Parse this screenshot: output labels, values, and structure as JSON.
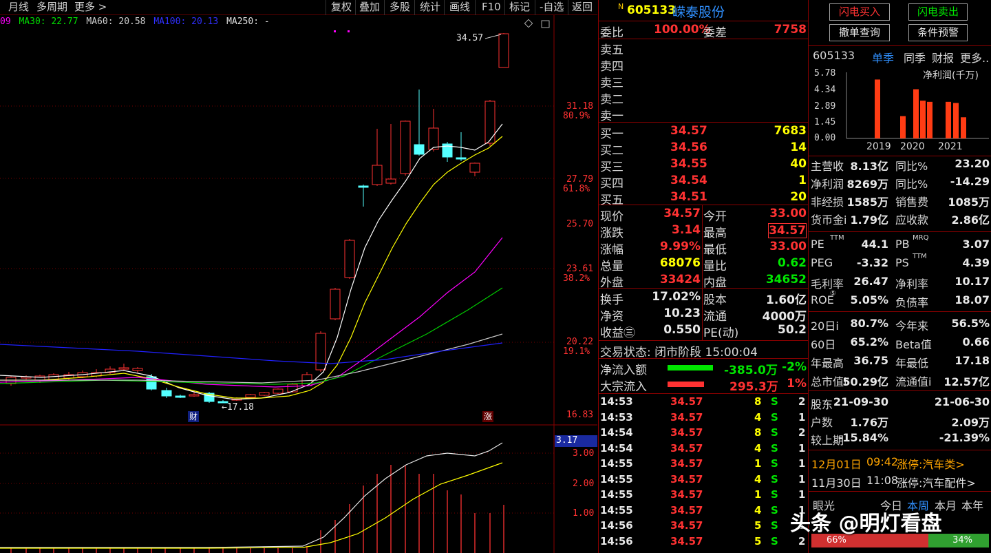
{
  "toolbar": {
    "left": [
      "月线",
      "多周期",
      "更多 >"
    ],
    "right": [
      "复权",
      "叠加",
      "多股",
      "统计",
      "画线",
      "F10",
      "标记",
      "-自选",
      "返回"
    ]
  },
  "ma_legend": {
    "ma20_partial": "09",
    "ma30": "MA30: 22.77",
    "ma60": "MA60: 20.58",
    "ma100": "MA100: 20.13",
    "ma250": "MA250: -"
  },
  "kchart": {
    "high_marker": "34.57",
    "low_marker": "←17.18",
    "price_ticks": [
      "31.18",
      "27.79",
      "25.70",
      "23.61",
      "20.22",
      "16.83"
    ],
    "pct_ticks": [
      "80.9%",
      "61.8%",
      "38.2%",
      "19.1%"
    ],
    "event_cai": "财",
    "event_zhang": "涨",
    "indicator_current": "3.17",
    "indicator_ticks": [
      "3.00",
      "2.00",
      "1.00"
    ],
    "colors": {
      "up": "#ff3232",
      "down": "#54ffff",
      "ma5": "#ffffff",
      "ma10": "#ffff00",
      "ma20": "#ff00ff",
      "ma30": "#00cc00",
      "ma60": "#c8c8c8",
      "ma100": "#2020ff"
    }
  },
  "stock": {
    "badge": "N",
    "code": "605133",
    "name": "嵘泰股份"
  },
  "quote": {
    "weibi_label": "委比",
    "weibi_value": "100.00%",
    "weicha_label": "委差",
    "weicha_value": "7758",
    "sell": [
      {
        "label": "卖五"
      },
      {
        "label": "卖四"
      },
      {
        "label": "卖三"
      },
      {
        "label": "卖二"
      },
      {
        "label": "卖一"
      }
    ],
    "buy": [
      {
        "label": "买一",
        "price": "34.57",
        "vol": "7683"
      },
      {
        "label": "买二",
        "price": "34.56",
        "vol": "14"
      },
      {
        "label": "买三",
        "price": "34.55",
        "vol": "40"
      },
      {
        "label": "买四",
        "price": "34.54",
        "vol": "1"
      },
      {
        "label": "买五",
        "price": "34.51",
        "vol": "20"
      }
    ],
    "stats": [
      {
        "l1": "现价",
        "v1": "34.57",
        "c1": "red",
        "l2": "今开",
        "v2": "33.00",
        "c2": "red"
      },
      {
        "l1": "涨跌",
        "v1": "3.14",
        "c1": "red",
        "l2": "最高",
        "v2": "34.57",
        "c2": "red"
      },
      {
        "l1": "涨幅",
        "v1": "9.99%",
        "c1": "red",
        "l2": "最低",
        "v2": "33.00",
        "c2": "red"
      },
      {
        "l1": "总量",
        "v1": "68076",
        "c1": "yellow",
        "l2": "量比",
        "v2": "0.62",
        "c2": "green"
      },
      {
        "l1": "外盘",
        "v1": "33424",
        "c1": "red",
        "l2": "内盘",
        "v2": "34652",
        "c2": "green"
      }
    ],
    "stats2": [
      {
        "l1": "换手",
        "v1": "17.02%",
        "l2": "股本",
        "v2": "1.60亿"
      },
      {
        "l1": "净资",
        "v1": "10.23",
        "l2": "流通",
        "v2": "4000万"
      },
      {
        "l1": "收益㊂",
        "v1": "0.550",
        "l2": "PE(动)",
        "v2": "50.2"
      }
    ],
    "trade_status": "交易状态: 闭市阶段 15:00:04",
    "net_inflow_label": "净流入额",
    "net_inflow_value": "-385.0万",
    "net_inflow_pct": "-2%",
    "block_inflow_label": "大宗流入",
    "block_inflow_value": "295.3万",
    "block_inflow_pct": "1%",
    "ticks": [
      {
        "t": "14:53",
        "p": "34.57",
        "v": "8",
        "s": "S",
        "n": "2"
      },
      {
        "t": "14:53",
        "p": "34.57",
        "v": "4",
        "s": "S",
        "n": "1"
      },
      {
        "t": "14:54",
        "p": "34.57",
        "v": "8",
        "s": "S",
        "n": "2"
      },
      {
        "t": "14:54",
        "p": "34.57",
        "v": "4",
        "s": "S",
        "n": "1"
      },
      {
        "t": "14:55",
        "p": "34.57",
        "v": "1",
        "s": "S",
        "n": "1"
      },
      {
        "t": "14:55",
        "p": "34.57",
        "v": "4",
        "s": "S",
        "n": "1"
      },
      {
        "t": "14:55",
        "p": "34.57",
        "v": "1",
        "s": "S",
        "n": "1"
      },
      {
        "t": "14:55",
        "p": "34.57",
        "v": "4",
        "s": "S",
        "n": "1"
      },
      {
        "t": "14:56",
        "p": "34.57",
        "v": "5",
        "s": "S",
        "n": "1"
      },
      {
        "t": "14:56",
        "p": "34.57",
        "v": "5",
        "s": "S",
        "n": "2"
      }
    ]
  },
  "info": {
    "buttons": {
      "flash_buy": "闪电买入",
      "flash_sell": "闪电卖出",
      "cancel_query": "撤单查询",
      "condition_alert": "条件预警"
    },
    "tabs": {
      "code": "605133",
      "single": "单季",
      "yoy": "同季",
      "report": "财报",
      "more": "更多.."
    },
    "profit_title": "净利润(千万)",
    "chart_data": {
      "type": "bar",
      "title": "净利润(千万)",
      "yticks": [
        "5.78",
        "4.34",
        "2.89",
        "1.45",
        "0.00"
      ],
      "ylim": [
        0,
        5.78
      ],
      "years": [
        "2019",
        "2020",
        "2021"
      ],
      "values": [
        5.15,
        1.95,
        4.3,
        3.3,
        3.2,
        3.2,
        3.1,
        1.85
      ]
    },
    "fin": [
      {
        "l1": "主营收",
        "v1": "8.13亿",
        "l2": "同比%",
        "v2": "23.20"
      },
      {
        "l1": "净利润",
        "v1": "8269万",
        "l2": "同比%",
        "v2": "-14.29"
      },
      {
        "l1": "非经损",
        "v1": "1585万",
        "l2": "销售费",
        "v2": "1085万"
      },
      {
        "l1": "货币金i",
        "v1": "1.79亿",
        "l2": "应收款",
        "v2": "2.86亿"
      }
    ],
    "val": [
      {
        "l1": "PE",
        "s1": "TTM",
        "v1": "44.1",
        "l2": "PB",
        "s2": "MRQ",
        "v2": "3.07"
      },
      {
        "l1": "PEG",
        "s1": "",
        "v1": "-3.32",
        "l2": "PS",
        "s2": "TTM",
        "v2": "4.39"
      },
      {
        "l1": "毛利率",
        "s1": "",
        "v1": "26.47",
        "l2": "净利率",
        "s2": "",
        "v2": "10.17"
      },
      {
        "l1": "ROE",
        "s1": "⑤",
        "v1": "5.05%",
        "l2": "负债率",
        "s2": "",
        "v2": "18.07"
      }
    ],
    "perf": [
      {
        "l1": "20日i",
        "v1": "80.7%",
        "l2": "今年来",
        "v2": "56.5%"
      },
      {
        "l1": "60日",
        "v1": "65.2%",
        "l2": "Beta值",
        "v2": "0.66"
      },
      {
        "l1": "年最高",
        "v1": "36.75",
        "l2": "年最低",
        "v2": "17.18"
      },
      {
        "l1": "总市值i",
        "v1": "50.29亿",
        "l2": "流通值i",
        "v2": "12.57亿"
      }
    ],
    "holders": [
      {
        "l": "股东",
        "a": "21-09-30",
        "b": "21-06-30"
      },
      {
        "l": "户数",
        "a": "1.76万",
        "b": "2.09万"
      },
      {
        "l": "较上期",
        "a": "-15.84%",
        "b": "-21.39%"
      }
    ],
    "news": [
      {
        "date": "12月01日",
        "time": "09:42",
        "text": "涨停:汽车类>"
      },
      {
        "date": "11月30日",
        "time": "11:08",
        "text": "涨停:汽车配件>"
      }
    ],
    "bottom_tabs": {
      "left": "眼光",
      "today": "今日",
      "week": "本周",
      "month": "本月",
      "year": "本年"
    },
    "sentiment": {
      "bull_pct": "66%",
      "bear_pct": "34%"
    }
  },
  "watermark": "头条 @明灯看盘"
}
